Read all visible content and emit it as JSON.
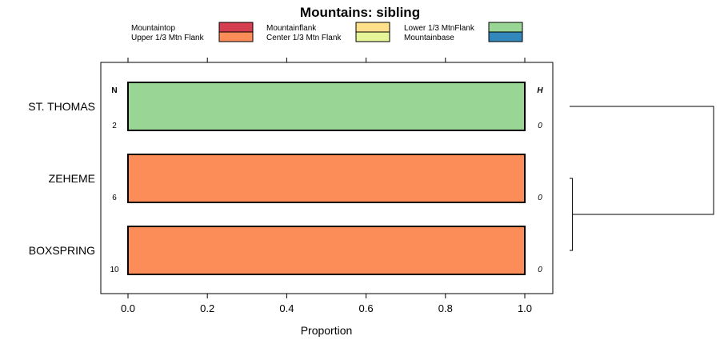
{
  "chart_data": {
    "type": "bar",
    "orientation": "horizontal",
    "stacked": true,
    "title": "Mountains: sibling",
    "xlabel": "Proportion",
    "xlim": [
      0,
      1
    ],
    "xticks": [
      "0.0",
      "0.2",
      "0.4",
      "0.6",
      "0.8",
      "1.0"
    ],
    "xtick_values": [
      0,
      0.2,
      0.4,
      0.6,
      0.8,
      1.0
    ],
    "left_header": "N",
    "right_header": "H",
    "categories": [
      "ST. THOMAS",
      "ZEHEME",
      "BOXSPRING"
    ],
    "n_values": [
      "2",
      "6",
      "10"
    ],
    "h_values": [
      "0",
      "0",
      "0"
    ],
    "legend": [
      {
        "name": "Mountaintop",
        "color": "#d53e4f"
      },
      {
        "name": "Upper 1/3 Mtn Flank",
        "color": "#fc8d59"
      },
      {
        "name": "Mountainflank",
        "color": "#fee08b"
      },
      {
        "name": "Center 1/3 Mtn Flank",
        "color": "#e6f598"
      },
      {
        "name": "Lower 1/3 MtnFlank",
        "color": "#99d594"
      },
      {
        "name": "Mountainbase",
        "color": "#3288bd"
      }
    ],
    "series": [
      {
        "name": "Mountaintop",
        "values": [
          0,
          0,
          0
        ]
      },
      {
        "name": "Upper 1/3 Mtn Flank",
        "values": [
          0,
          1,
          1
        ]
      },
      {
        "name": "Mountainflank",
        "values": [
          0,
          0,
          0
        ]
      },
      {
        "name": "Center 1/3 Mtn Flank",
        "values": [
          0,
          0,
          0
        ]
      },
      {
        "name": "Lower 1/3 MtnFlank",
        "values": [
          1,
          0,
          0
        ]
      },
      {
        "name": "Mountainbase",
        "values": [
          0,
          0,
          0
        ]
      }
    ],
    "dendrogram": {
      "leaves": [
        "ST. THOMAS",
        "ZEHEME",
        "BOXSPRING"
      ],
      "merges": [
        {
          "left": "ZEHEME",
          "right": "BOXSPRING",
          "height": 0.02
        },
        {
          "left": "ST. THOMAS",
          "right": "ZEHEME+BOXSPRING",
          "height": 1.0
        }
      ]
    }
  }
}
